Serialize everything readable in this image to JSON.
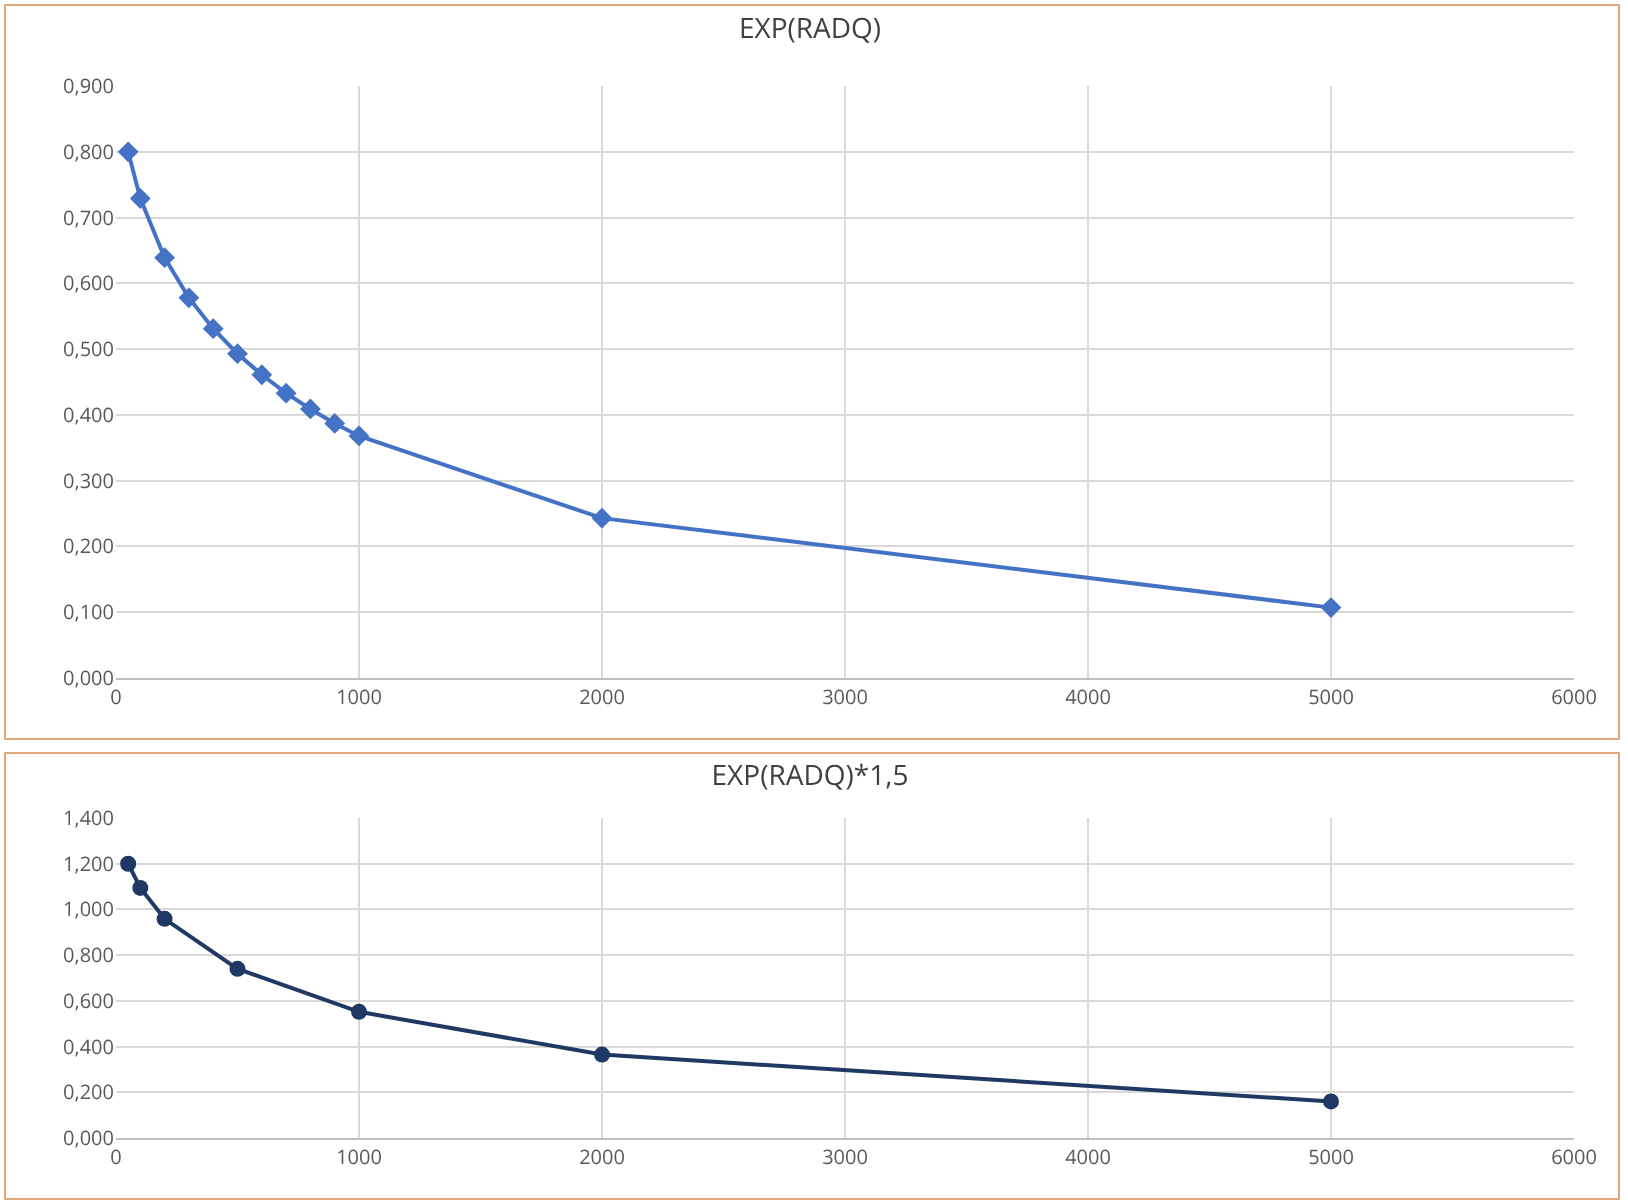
{
  "chart_data": [
    {
      "type": "line",
      "title": "EXP(RADQ)",
      "x": [
        50,
        100,
        200,
        300,
        400,
        500,
        600,
        700,
        800,
        900,
        1000,
        2000,
        5000
      ],
      "series": [
        {
          "color": "#4472c4",
          "values": [
            0.8,
            0.729,
            0.639,
            0.578,
            0.531,
            0.493,
            0.461,
            0.433,
            0.409,
            0.387,
            0.368,
            0.243,
            0.107
          ]
        }
      ],
      "marker": "diamond",
      "grid": true,
      "legend": false,
      "xlim": [
        0,
        6000
      ],
      "xticks": [
        0,
        1000,
        2000,
        3000,
        4000,
        5000,
        6000
      ],
      "ylim": [
        0,
        0.9
      ],
      "yticks": [
        {
          "value": 0,
          "label": "0,000"
        },
        {
          "value": 0.1,
          "label": "0,100"
        },
        {
          "value": 0.2,
          "label": "0,200"
        },
        {
          "value": 0.3,
          "label": "0,300"
        },
        {
          "value": 0.4,
          "label": "0,400"
        },
        {
          "value": 0.5,
          "label": "0,500"
        },
        {
          "value": 0.6,
          "label": "0,600"
        },
        {
          "value": 0.7,
          "label": "0,700"
        },
        {
          "value": 0.8,
          "label": "0,800"
        },
        {
          "value": 0.9,
          "label": "0,900"
        }
      ]
    },
    {
      "type": "line",
      "title": "EXP(RADQ)*1,5",
      "x": [
        50,
        100,
        200,
        500,
        1000,
        2000,
        5000
      ],
      "series": [
        {
          "color": "#203864",
          "values": [
            1.2,
            1.094,
            0.959,
            0.74,
            0.552,
            0.365,
            0.16
          ]
        }
      ],
      "marker": "circle",
      "grid": true,
      "legend": false,
      "xlim": [
        0,
        6000
      ],
      "xticks": [
        0,
        1000,
        2000,
        3000,
        4000,
        5000,
        6000
      ],
      "ylim": [
        0,
        1.4
      ],
      "yticks": [
        {
          "value": 0,
          "label": "0,000"
        },
        {
          "value": 0.2,
          "label": "0,200"
        },
        {
          "value": 0.4,
          "label": "0,400"
        },
        {
          "value": 0.6,
          "label": "0,600"
        },
        {
          "value": 0.8,
          "label": "0,800"
        },
        {
          "value": 1.0,
          "label": "1,000"
        },
        {
          "value": 1.2,
          "label": "1,200"
        },
        {
          "value": 1.4,
          "label": "1,400"
        }
      ]
    }
  ]
}
